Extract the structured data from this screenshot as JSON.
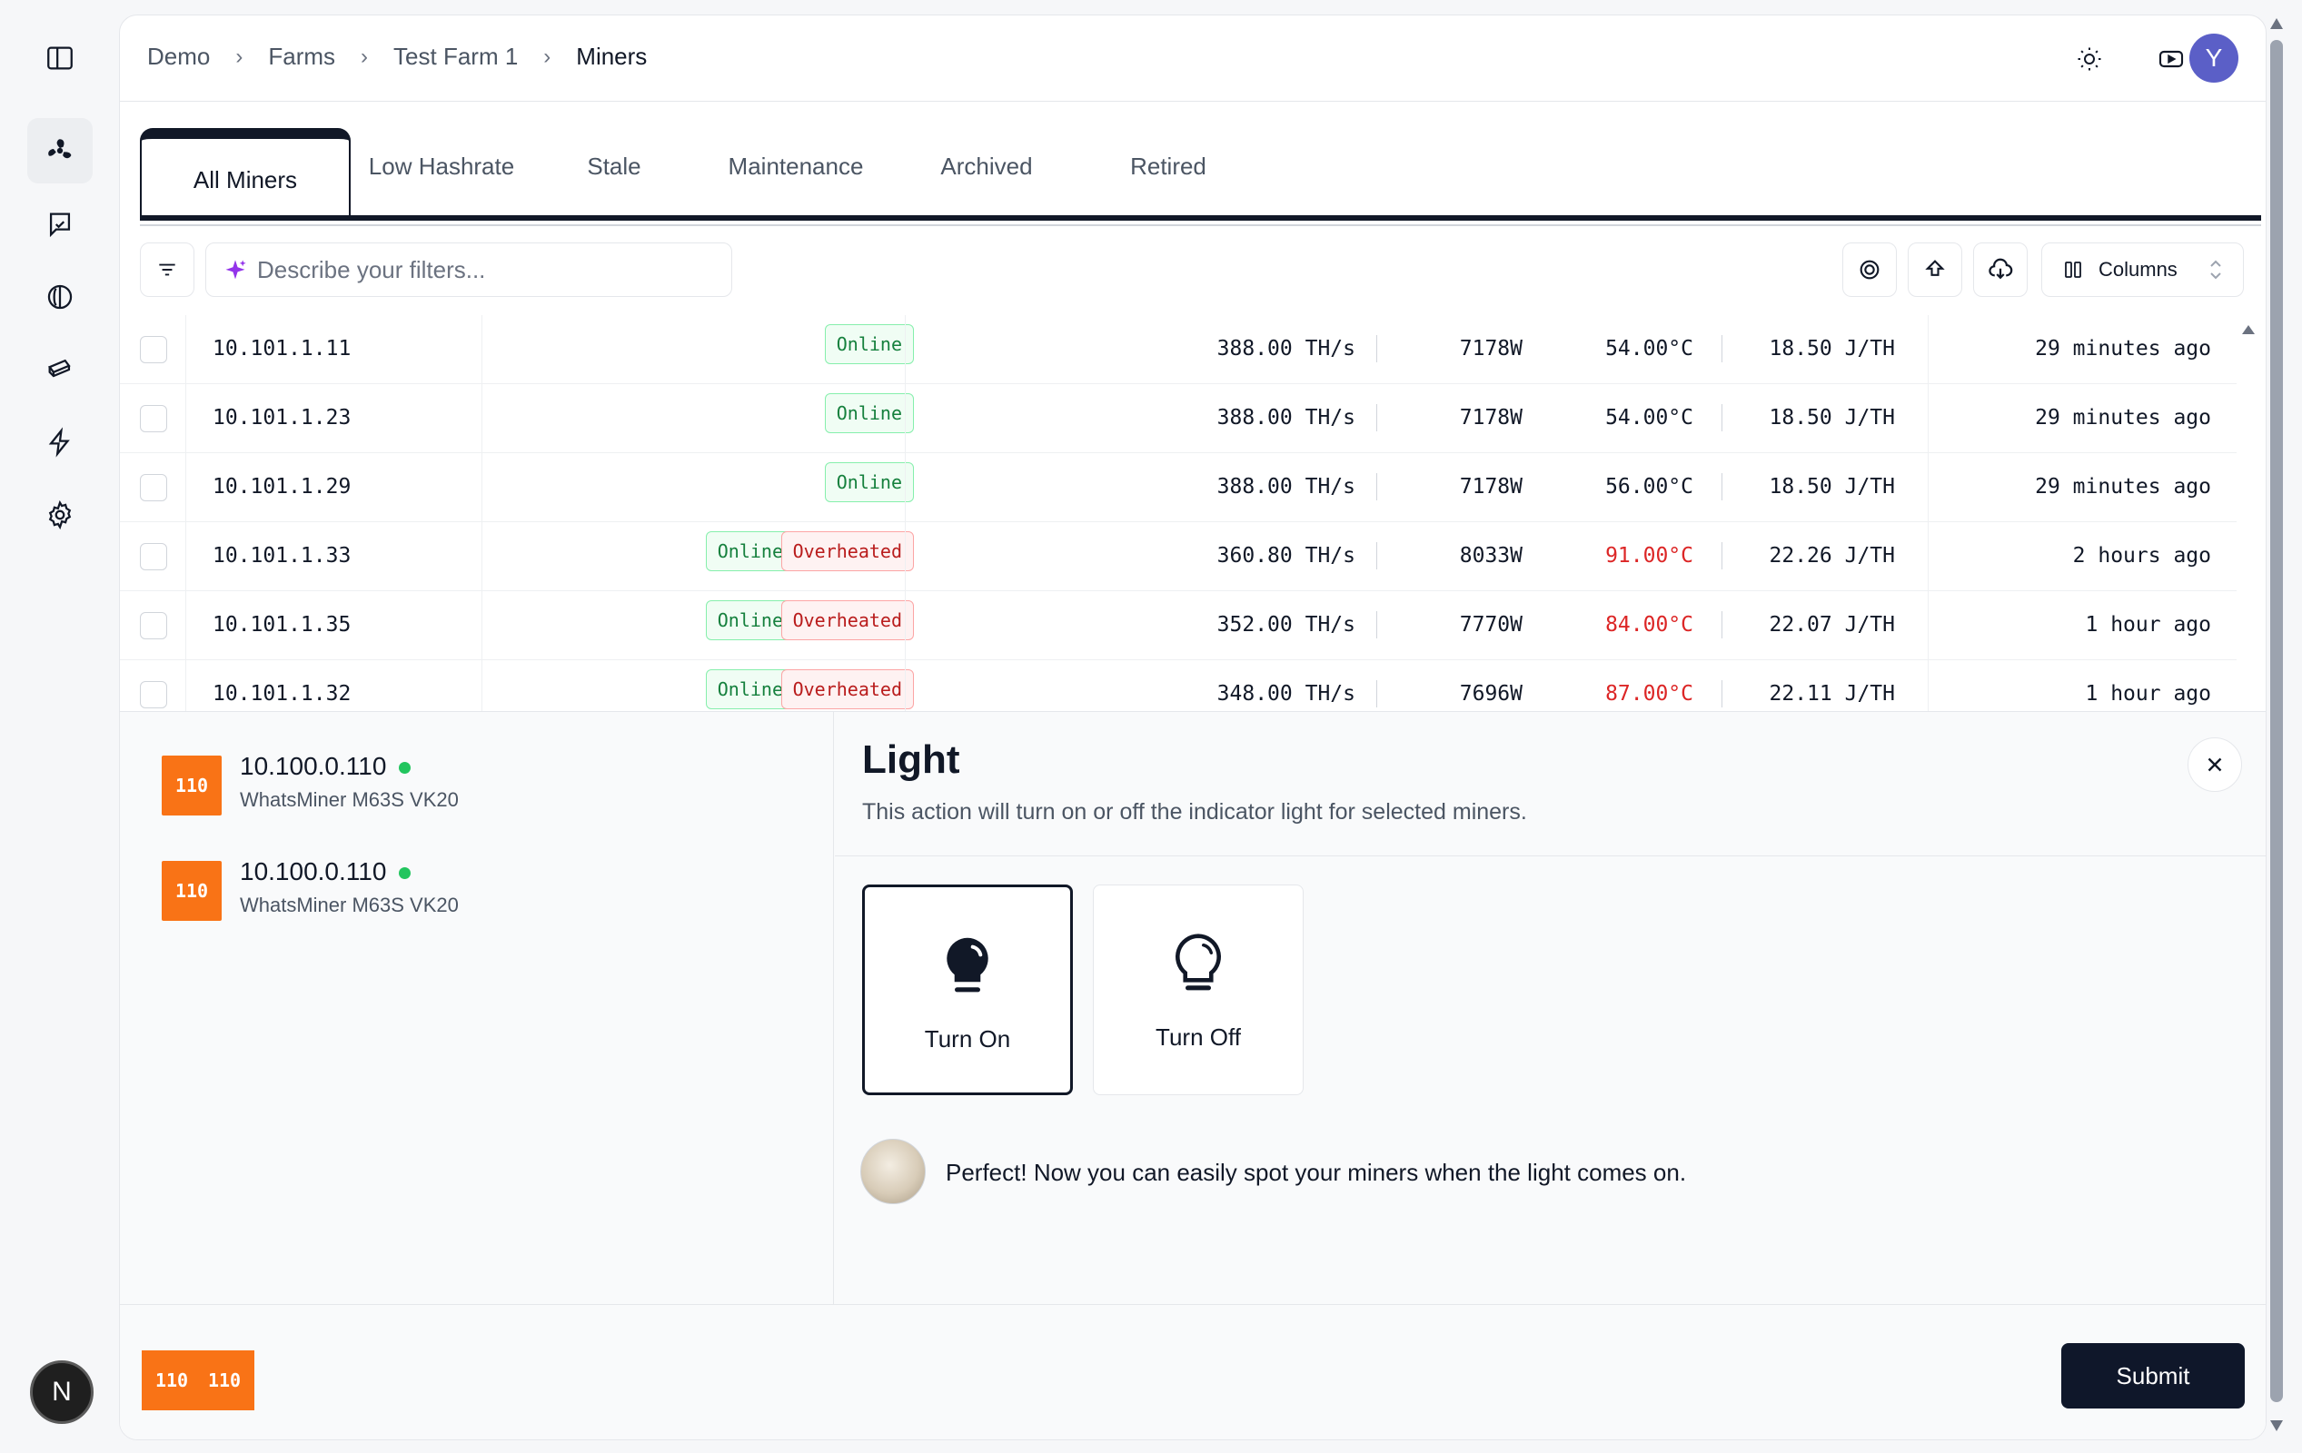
{
  "breadcrumb": [
    "Demo",
    "Farms",
    "Test Farm 1",
    "Miners"
  ],
  "user": {
    "initial": "Y",
    "accent": "#5b5fc7"
  },
  "sidebar": {
    "icons": [
      "panel-toggle-icon",
      "fan-icon",
      "message-icon",
      "contrast-icon",
      "tickets-icon",
      "bolt-icon",
      "gear-icon"
    ],
    "bottom_badge": "N"
  },
  "tabs": [
    "All Miners",
    "Low Hashrate",
    "Stale",
    "Maintenance",
    "Archived",
    "Retired"
  ],
  "active_tab": "All Miners",
  "filters": {
    "placeholder": "Describe your filters...",
    "columns_label": "Columns"
  },
  "miners": [
    {
      "ip": "10.101.1.11",
      "statuses": [
        "Online"
      ],
      "hashrate": "388.00 TH/s",
      "power": "7178W",
      "temp": "54.00°C",
      "hot": false,
      "efficiency": "18.50 J/TH",
      "updated": "29 minutes ago"
    },
    {
      "ip": "10.101.1.23",
      "statuses": [
        "Online"
      ],
      "hashrate": "388.00 TH/s",
      "power": "7178W",
      "temp": "54.00°C",
      "hot": false,
      "efficiency": "18.50 J/TH",
      "updated": "29 minutes ago"
    },
    {
      "ip": "10.101.1.29",
      "statuses": [
        "Online"
      ],
      "hashrate": "388.00 TH/s",
      "power": "7178W",
      "temp": "56.00°C",
      "hot": false,
      "efficiency": "18.50 J/TH",
      "updated": "29 minutes ago"
    },
    {
      "ip": "10.101.1.33",
      "statuses": [
        "Online",
        "Overheated"
      ],
      "hashrate": "360.80 TH/s",
      "power": "8033W",
      "temp": "91.00°C",
      "hot": true,
      "efficiency": "22.26 J/TH",
      "updated": "2 hours ago"
    },
    {
      "ip": "10.101.1.35",
      "statuses": [
        "Online",
        "Overheated"
      ],
      "hashrate": "352.00 TH/s",
      "power": "7770W",
      "temp": "84.00°C",
      "hot": true,
      "efficiency": "22.07 J/TH",
      "updated": "1 hour ago"
    },
    {
      "ip": "10.101.1.32",
      "statuses": [
        "Online",
        "Overheated"
      ],
      "hashrate": "348.00 TH/s",
      "power": "7696W",
      "temp": "87.00°C",
      "hot": true,
      "efficiency": "22.11 J/TH",
      "updated": "1 hour ago"
    }
  ],
  "selected_miners": [
    {
      "chip": "110",
      "ip": "10.100.0.110",
      "model": "WhatsMiner M63S VK20",
      "online": true
    },
    {
      "chip": "110",
      "ip": "10.100.0.110",
      "model": "WhatsMiner M63S VK20",
      "online": true
    }
  ],
  "action": {
    "title": "Light",
    "description": "This action will turn on or off the indicator light for selected miners.",
    "options": [
      {
        "label": "Turn On",
        "selected": true
      },
      {
        "label": "Turn Off",
        "selected": false
      }
    ],
    "message": "Perfect! Now you can easily spot your miners when the light comes on.",
    "submit_label": "Submit"
  },
  "footer_chips": [
    "110",
    "110"
  ],
  "colors": {
    "online": "#15803d",
    "overheated": "#b91c1c",
    "hot_temp": "#dc2626",
    "chip": "#f97316",
    "primary": "#0f172a"
  }
}
